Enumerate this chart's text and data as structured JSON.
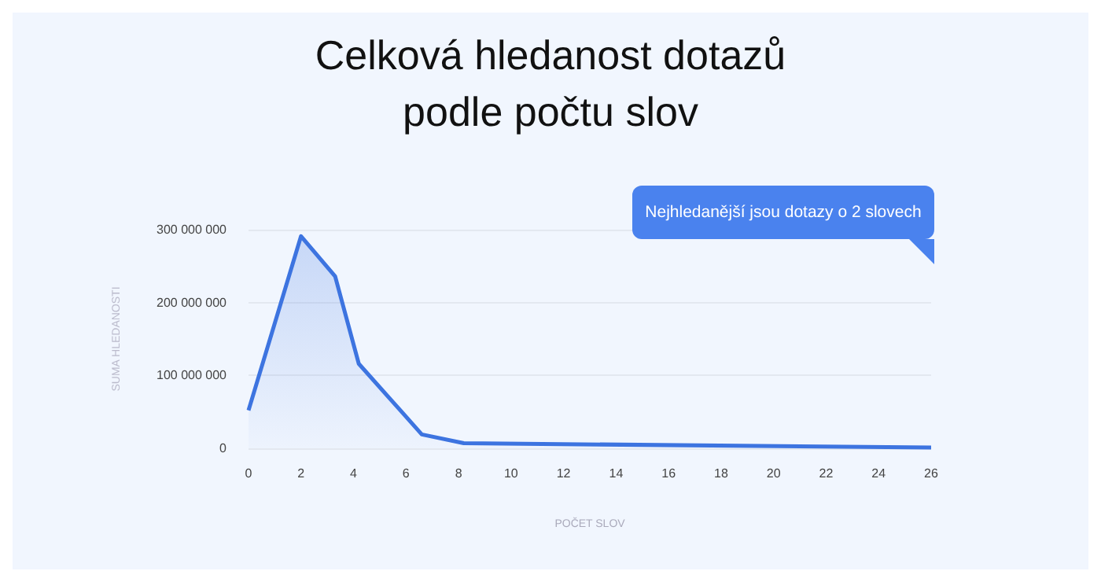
{
  "chart_data": {
    "type": "area",
    "title": "Celková hledanost dotazů\npodle počtu slov",
    "xlabel": "POČET SLOV",
    "ylabel": "SUMA HLEDANOSTI",
    "annotations": [
      "Nejhledanější jsou dotazy o 2 slovech"
    ],
    "series": [
      {
        "color": "#3d74e0",
        "x": [
          0,
          2,
          3.3,
          4.2,
          6.6,
          8.2,
          26
        ],
        "values": [
          52000000,
          291000000,
          236000000,
          116000000,
          19000000,
          7000000,
          1000000
        ]
      }
    ],
    "xlim": [
      0,
      26
    ],
    "xticks": [
      0,
      2,
      4,
      6,
      8,
      10,
      12,
      14,
      16,
      18,
      20,
      22,
      24,
      26
    ],
    "ylim": [
      0,
      300000000
    ],
    "yticks": [
      {
        "value": 0,
        "label": "0"
      },
      {
        "value": 100000000,
        "label": "100 000 000"
      },
      {
        "value": 200000000,
        "label": "200 000 000"
      },
      {
        "value": 300000000,
        "label": "300 000 000"
      }
    ],
    "grid": "y",
    "marker": "none",
    "line_style": "solid"
  }
}
